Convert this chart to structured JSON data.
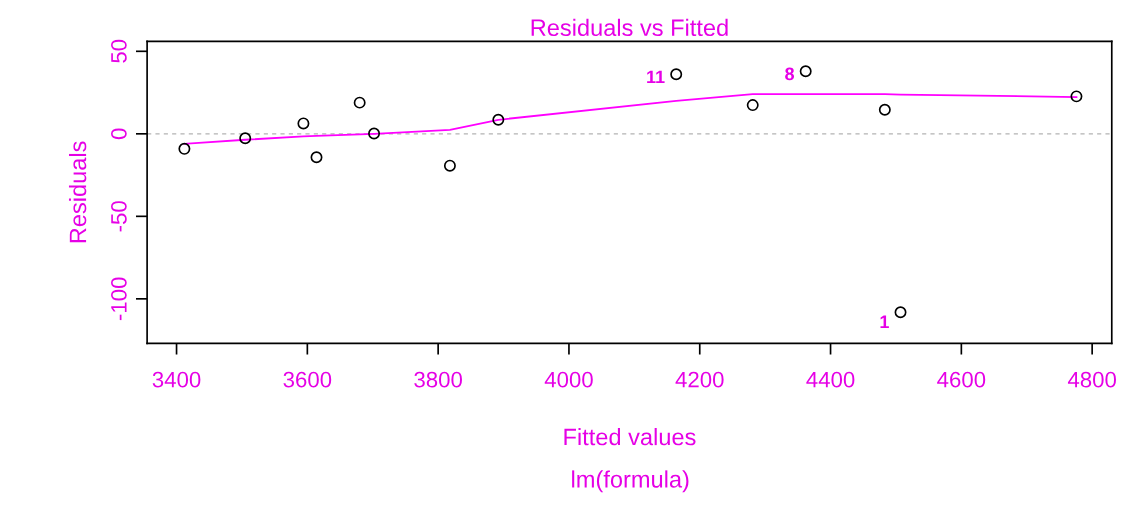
{
  "chart_data": {
    "type": "scatter",
    "title": "Residuals vs Fitted",
    "subtitle": "lm(formula)",
    "xlabel": "Fitted values",
    "ylabel": "Residuals",
    "xlim": [
      3355,
      4830
    ],
    "ylim": [
      -127,
      56
    ],
    "xticks": [
      3400,
      3600,
      3800,
      4000,
      4200,
      4400,
      4600,
      4800
    ],
    "yticks": [
      -100,
      -50,
      0,
      50
    ],
    "grid": false,
    "legend": false,
    "marker": "circle",
    "series": [
      {
        "color": "#000000",
        "x": [
          3412,
          3505,
          3594,
          3614,
          3680,
          3702,
          3818,
          3892,
          4164,
          4281,
          4362,
          4483,
          4507,
          4776
        ],
        "values": [
          -9.1,
          -2.7,
          6.3,
          -14.2,
          18.9,
          0.2,
          -19.3,
          8.5,
          36.1,
          17.4,
          37.9,
          14.6,
          -108.1,
          22.7
        ]
      },
      {
        "type": "line",
        "color": "#ff00ff",
        "line_style": "solid",
        "marker": "none",
        "x": [
          3412,
          3505,
          3594,
          3614,
          3680,
          3702,
          3818,
          3892,
          4164,
          4281,
          4362,
          4483,
          4507,
          4776
        ],
        "values": [
          -6.1,
          -3.6,
          -1.5,
          -1.2,
          -0.3,
          0,
          2.4,
          8.5,
          20,
          24,
          24,
          24,
          23.8,
          22.3
        ]
      }
    ],
    "ref_lines": [
      {
        "axis": "y",
        "value": 0,
        "color": "#b3b3b3",
        "line_style": "dotted"
      }
    ],
    "annotations": [
      {
        "text": "11",
        "x": 4164,
        "y": 36.1
      },
      {
        "text": "8",
        "x": 4362,
        "y": 37.9
      },
      {
        "text": "1",
        "x": 4507,
        "y": -108.1
      }
    ]
  }
}
